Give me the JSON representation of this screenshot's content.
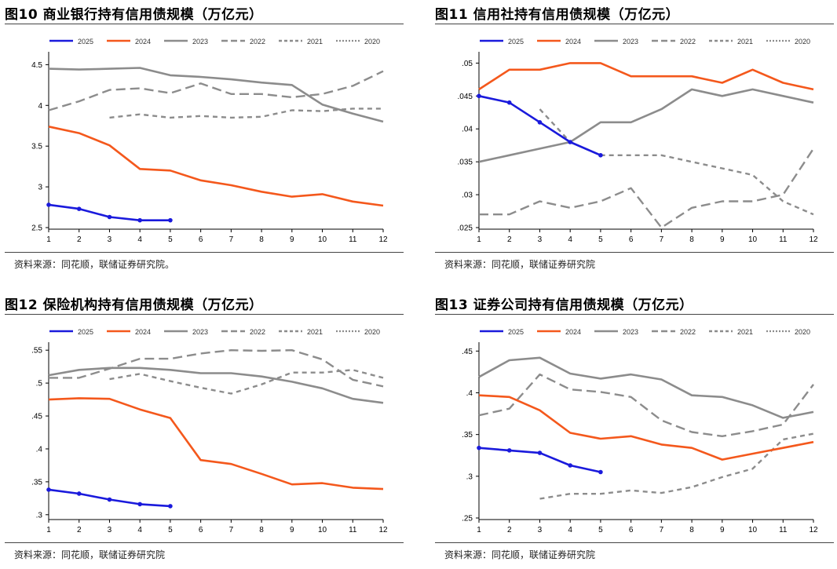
{
  "colors": {
    "s2025": "#1a1adc",
    "s2024": "#f4581c",
    "s2023": "#8c8c8c",
    "s2022": "#8c8c8c",
    "s2021": "#8c8c8c",
    "s2020": "#8c8c8c",
    "axis": "#000000"
  },
  "panels": [
    {
      "title": "图10 商业银行持有信用债规模（万亿元）",
      "source": "资料来源：同花顺，联储证券研究院。"
    },
    {
      "title": "图11 信用社持有信用债规模（万亿元）",
      "source": "资料来源：同花顺，联储证券研究院"
    },
    {
      "title": "图12 保险机构持有信用债规模（万亿元）",
      "source": "资料来源：同花顺，联储证券研究院"
    },
    {
      "title": "图13 证券公司持有信用债规模（万亿元）",
      "source": "资料来源：同花顺，联储证券研究院"
    }
  ],
  "chart_data": [
    {
      "type": "line",
      "title": "图10 商业银行持有信用债规模（万亿元）",
      "x": [
        1,
        2,
        3,
        4,
        5,
        6,
        7,
        8,
        9,
        10,
        11,
        12
      ],
      "ylim": [
        2.5,
        4.6
      ],
      "yticks": [
        2.5,
        3,
        3.5,
        4,
        4.5
      ],
      "ytick_labels": [
        "2.5",
        "3",
        "3.5",
        "4",
        "4.5"
      ],
      "legend_position": "top",
      "series": [
        {
          "name": "2025",
          "style": "solid-marker",
          "values": [
            2.78,
            2.73,
            2.63,
            2.59,
            2.59,
            null,
            null,
            null,
            null,
            null,
            null,
            null
          ]
        },
        {
          "name": "2024",
          "style": "solid",
          "values": [
            3.74,
            3.66,
            3.51,
            3.22,
            3.2,
            3.08,
            3.02,
            2.94,
            2.88,
            2.91,
            2.82,
            2.77
          ]
        },
        {
          "name": "2023",
          "style": "solid",
          "values": [
            4.45,
            4.44,
            4.45,
            4.46,
            4.37,
            4.35,
            4.32,
            4.28,
            4.25,
            4.01,
            3.9,
            3.8
          ]
        },
        {
          "name": "2022",
          "style": "dash-long",
          "values": [
            3.94,
            4.05,
            4.19,
            4.21,
            4.15,
            4.27,
            4.14,
            4.14,
            4.1,
            4.14,
            4.24,
            4.42
          ]
        },
        {
          "name": "2021",
          "style": "dash-short",
          "values": [
            null,
            null,
            3.85,
            3.89,
            3.85,
            3.87,
            3.85,
            3.86,
            3.94,
            3.93,
            3.96,
            3.96
          ]
        },
        {
          "name": "2020",
          "style": "dot",
          "values": [
            null,
            null,
            null,
            null,
            null,
            null,
            null,
            null,
            null,
            null,
            null,
            null
          ]
        }
      ]
    },
    {
      "type": "line",
      "title": "图11 信用社持有信用债规模（万亿元）",
      "x": [
        1,
        2,
        3,
        4,
        5,
        6,
        7,
        8,
        9,
        10,
        11,
        12
      ],
      "ylim": [
        0.025,
        0.051
      ],
      "yticks": [
        0.025,
        0.03,
        0.035,
        0.04,
        0.045,
        0.05
      ],
      "ytick_labels": [
        ".025",
        ".03",
        ".035",
        ".04",
        ".045",
        ".05"
      ],
      "legend_position": "top",
      "series": [
        {
          "name": "2025",
          "style": "solid-marker",
          "values": [
            0.045,
            0.044,
            0.041,
            0.038,
            0.036,
            null,
            null,
            null,
            null,
            null,
            null,
            null
          ]
        },
        {
          "name": "2024",
          "style": "solid",
          "values": [
            0.046,
            0.049,
            0.049,
            0.05,
            0.05,
            0.048,
            0.048,
            0.048,
            0.047,
            0.049,
            0.047,
            0.046
          ]
        },
        {
          "name": "2023",
          "style": "solid",
          "values": [
            0.035,
            0.036,
            0.037,
            0.038,
            0.041,
            0.041,
            0.043,
            0.046,
            0.045,
            0.046,
            0.045,
            0.044
          ]
        },
        {
          "name": "2022",
          "style": "dash-long",
          "values": [
            0.027,
            0.027,
            0.029,
            0.028,
            0.029,
            0.031,
            0.025,
            0.028,
            0.029,
            0.029,
            0.03,
            0.037
          ]
        },
        {
          "name": "2021",
          "style": "dash-short",
          "values": [
            null,
            null,
            0.043,
            0.038,
            0.036,
            0.036,
            0.036,
            0.035,
            0.034,
            0.033,
            0.029,
            0.027
          ]
        },
        {
          "name": "2020",
          "style": "dot",
          "values": [
            null,
            null,
            null,
            null,
            null,
            null,
            null,
            null,
            null,
            null,
            null,
            null
          ]
        }
      ]
    },
    {
      "type": "line",
      "title": "图12 保险机构持有信用债规模（万亿元）",
      "x": [
        1,
        2,
        3,
        4,
        5,
        6,
        7,
        8,
        9,
        10,
        11,
        12
      ],
      "ylim": [
        0.295,
        0.555
      ],
      "yticks": [
        0.3,
        0.35,
        0.4,
        0.45,
        0.5,
        0.55
      ],
      "ytick_labels": [
        ".3",
        ".35",
        ".4",
        ".45",
        ".5",
        ".55"
      ],
      "legend_position": "top",
      "series": [
        {
          "name": "2025",
          "style": "solid-marker",
          "values": [
            0.338,
            0.332,
            0.323,
            0.316,
            0.313,
            null,
            null,
            null,
            null,
            null,
            null,
            null
          ]
        },
        {
          "name": "2024",
          "style": "solid",
          "values": [
            0.475,
            0.477,
            0.476,
            0.46,
            0.447,
            0.383,
            0.377,
            0.362,
            0.346,
            0.348,
            0.341,
            0.339
          ]
        },
        {
          "name": "2023",
          "style": "solid",
          "values": [
            0.512,
            0.52,
            0.523,
            0.523,
            0.52,
            0.515,
            0.515,
            0.51,
            0.502,
            0.492,
            0.476,
            0.47
          ]
        },
        {
          "name": "2022",
          "style": "dash-long",
          "values": [
            0.508,
            0.508,
            0.522,
            0.537,
            0.537,
            0.545,
            0.55,
            0.549,
            0.55,
            0.536,
            0.505,
            0.495
          ]
        },
        {
          "name": "2021",
          "style": "dash-short",
          "values": [
            null,
            null,
            0.506,
            0.514,
            0.503,
            0.493,
            0.484,
            0.498,
            0.516,
            0.516,
            0.52,
            0.508
          ]
        },
        {
          "name": "2020",
          "style": "dot",
          "values": [
            null,
            null,
            null,
            null,
            null,
            null,
            null,
            null,
            null,
            null,
            null,
            null
          ]
        }
      ]
    },
    {
      "type": "line",
      "title": "图13 证券公司持有信用债规模（万亿元）",
      "x": [
        1,
        2,
        3,
        4,
        5,
        6,
        7,
        8,
        9,
        10,
        11,
        12
      ],
      "ylim": [
        0.25,
        0.455
      ],
      "yticks": [
        0.25,
        0.3,
        0.35,
        0.4,
        0.45
      ],
      "ytick_labels": [
        ".25",
        ".3",
        ".35",
        ".4",
        ".45"
      ],
      "legend_position": "top",
      "series": [
        {
          "name": "2025",
          "style": "solid-marker",
          "values": [
            0.334,
            0.331,
            0.328,
            0.313,
            0.305,
            null,
            null,
            null,
            null,
            null,
            null,
            null
          ]
        },
        {
          "name": "2024",
          "style": "solid",
          "values": [
            0.397,
            0.395,
            0.379,
            0.352,
            0.345,
            0.348,
            0.338,
            0.334,
            0.32,
            0.327,
            0.334,
            0.341
          ]
        },
        {
          "name": "2023",
          "style": "solid",
          "values": [
            0.419,
            0.439,
            0.442,
            0.423,
            0.417,
            0.422,
            0.416,
            0.397,
            0.395,
            0.385,
            0.37,
            0.377
          ]
        },
        {
          "name": "2022",
          "style": "dash-long",
          "values": [
            0.373,
            0.381,
            0.422,
            0.404,
            0.401,
            0.395,
            0.367,
            0.353,
            0.348,
            0.354,
            0.362,
            0.41
          ]
        },
        {
          "name": "2021",
          "style": "dash-short",
          "values": [
            null,
            null,
            0.273,
            0.279,
            0.279,
            0.283,
            0.28,
            0.287,
            0.299,
            0.309,
            0.344,
            0.351
          ]
        },
        {
          "name": "2020",
          "style": "dot",
          "values": [
            null,
            null,
            null,
            null,
            null,
            null,
            null,
            null,
            null,
            null,
            null,
            null
          ]
        }
      ]
    }
  ]
}
